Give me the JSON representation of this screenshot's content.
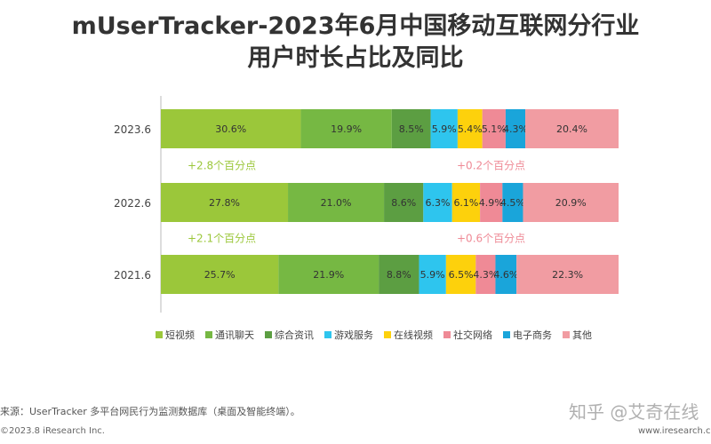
{
  "title_line1": "mUserTracker-2023年6月中国移动互联网分行业",
  "title_line2": "用户时长占比及同比",
  "chart_data": {
    "type": "bar",
    "orientation": "horizontal",
    "stacked": true,
    "percent": true,
    "categories": [
      "2023.6",
      "2022.6",
      "2021.6"
    ],
    "series": [
      {
        "name": "短视频",
        "color": "#9BC73A",
        "values": [
          30.6,
          27.8,
          25.7
        ],
        "labels": [
          "30.6%",
          "27.8%",
          "25.7%"
        ]
      },
      {
        "name": "通讯聊天",
        "color": "#76B843",
        "values": [
          19.9,
          21.0,
          21.9
        ],
        "labels": [
          "19.9%",
          "21.0%",
          "21.9%"
        ]
      },
      {
        "name": "综合资讯",
        "color": "#5C9E42",
        "values": [
          8.5,
          8.6,
          8.8
        ],
        "labels": [
          "8.5%",
          "8.6%",
          "8.8%"
        ]
      },
      {
        "name": "游戏服务",
        "color": "#2EC5EE",
        "values": [
          5.9,
          6.3,
          5.9
        ],
        "labels": [
          "5.9%",
          "6.3%",
          "5.9%"
        ]
      },
      {
        "name": "在线视频",
        "color": "#FDD10C",
        "values": [
          5.4,
          6.1,
          6.5
        ],
        "labels": [
          "5.4%",
          "6.1%",
          "6.5%"
        ]
      },
      {
        "name": "社交网络",
        "color": "#EF8A96",
        "values": [
          5.1,
          4.9,
          4.3
        ],
        "labels": [
          "5.1%",
          "4.9%",
          "4.3%"
        ]
      },
      {
        "name": "电子商务",
        "color": "#1AA5DA",
        "values": [
          4.3,
          4.5,
          4.6
        ],
        "labels": [
          "4.3%",
          "4.5%",
          "4.6%"
        ]
      },
      {
        "name": "其他",
        "color": "#F19CA2",
        "values": [
          20.4,
          20.9,
          22.3
        ],
        "labels": [
          "20.4%",
          "20.9%",
          "22.3%"
        ]
      }
    ],
    "annotations": [
      {
        "text": "+2.8个百分点",
        "color": "#9BC73A",
        "between": [
          "2023.6",
          "2022.6"
        ],
        "side": "left"
      },
      {
        "text": "+0.2个百分点",
        "color": "#EF8A96",
        "between": [
          "2023.6",
          "2022.6"
        ],
        "side": "right"
      },
      {
        "text": "+2.1个百分点",
        "color": "#9BC73A",
        "between": [
          "2022.6",
          "2021.6"
        ],
        "side": "left"
      },
      {
        "text": "+0.6个百分点",
        "color": "#EF8A96",
        "between": [
          "2022.6",
          "2021.6"
        ],
        "side": "right"
      }
    ],
    "legend_position": "bottom",
    "grid": false
  },
  "footer": {
    "source": "来源：UserTracker 多平台网民行为监测数据库（桌面及智能终端）。",
    "copyright": "©2023.8 iResearch Inc.",
    "site": "www.iresearch.com.cn",
    "watermark": "知乎 @艾奇在线"
  }
}
